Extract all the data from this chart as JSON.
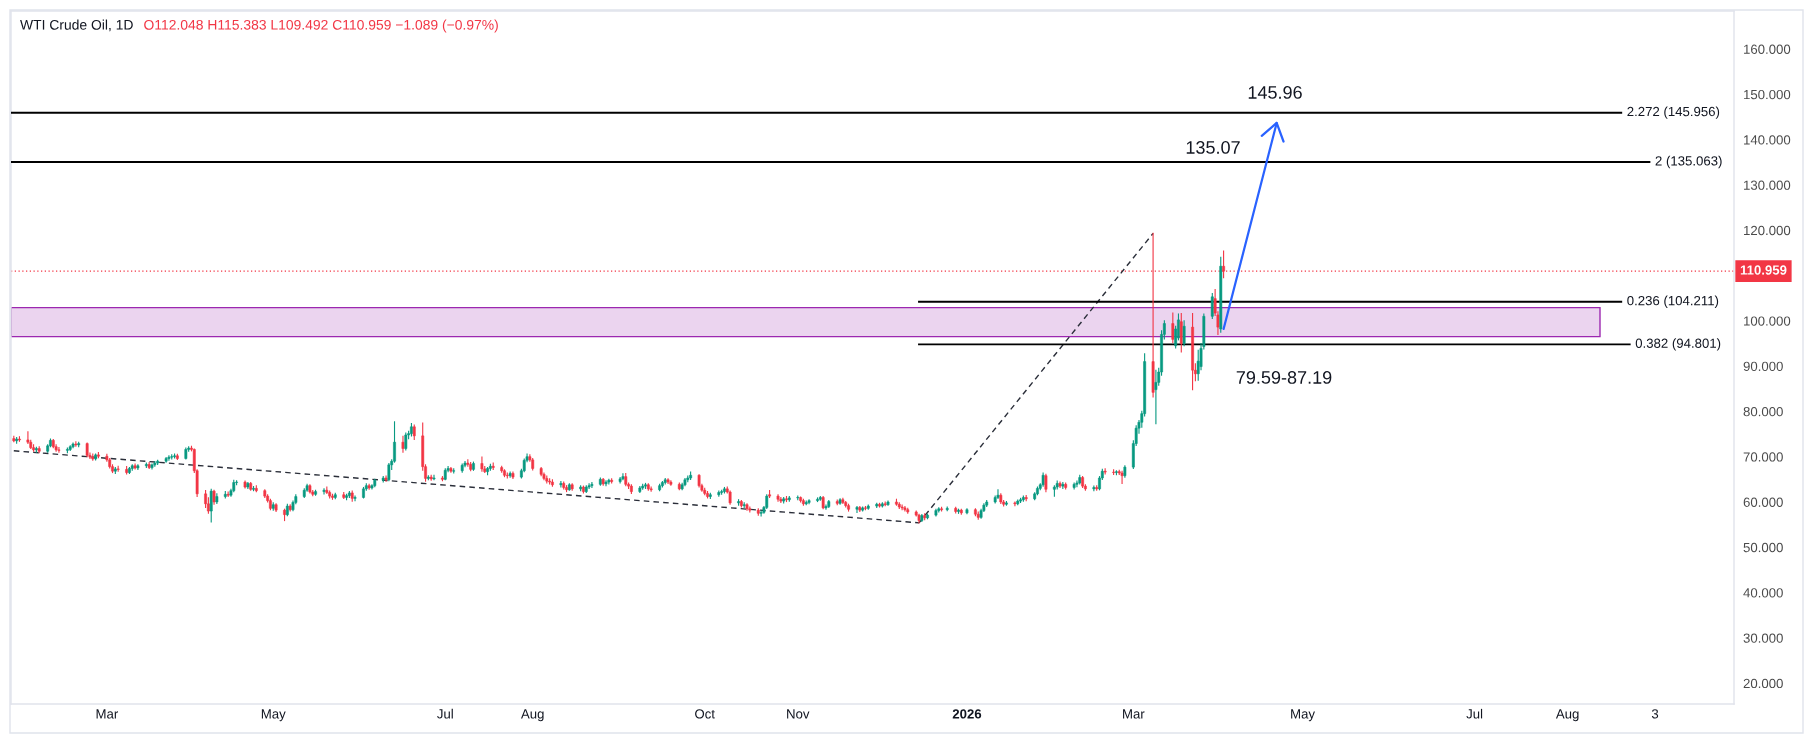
{
  "chart_data": {
    "type": "candlestick",
    "title": "WTI Crude Oil, 1D",
    "subtitle": "O112.048 H115.383 L109.492 C110.959 −1.089 (−0.97%)",
    "annotations": [
      "145.96",
      "135.07",
      "79.59-87.19"
    ],
    "x": [
      "2025-01-29",
      "2025-01-30",
      "2025-01-31",
      "2025-02-03",
      "2025-02-04",
      "2025-02-05",
      "2025-02-06",
      "2025-02-07",
      "2025-02-10",
      "2025-02-11",
      "2025-02-12",
      "2025-02-13",
      "2025-02-14",
      "2025-02-17",
      "2025-02-18",
      "2025-02-19",
      "2025-02-20",
      "2025-02-21",
      "2025-02-24",
      "2025-02-25",
      "2025-02-26",
      "2025-02-27",
      "2025-02-28",
      "2025-03-03",
      "2025-03-04",
      "2025-03-05",
      "2025-03-06",
      "2025-03-07",
      "2025-03-10",
      "2025-03-11",
      "2025-03-12",
      "2025-03-13",
      "2025-03-14",
      "2025-03-17",
      "2025-03-18",
      "2025-03-19",
      "2025-03-20",
      "2025-03-21",
      "2025-03-24",
      "2025-03-25",
      "2025-03-26",
      "2025-03-27",
      "2025-03-28",
      "2025-03-31",
      "2025-04-01",
      "2025-04-02",
      "2025-04-03",
      "2025-04-04",
      "2025-04-07",
      "2025-04-08",
      "2025-04-09",
      "2025-04-10",
      "2025-04-11",
      "2025-04-14",
      "2025-04-15",
      "2025-04-16",
      "2025-04-17",
      "2025-04-18",
      "2025-04-21",
      "2025-04-22",
      "2025-04-23",
      "2025-04-24",
      "2025-04-25",
      "2025-04-28",
      "2025-04-29",
      "2025-04-30",
      "2025-05-01",
      "2025-05-02",
      "2025-05-05",
      "2025-05-06",
      "2025-05-07",
      "2025-05-08",
      "2025-05-09",
      "2025-05-12",
      "2025-05-13",
      "2025-05-14",
      "2025-05-15",
      "2025-05-16",
      "2025-05-19",
      "2025-05-20",
      "2025-05-21",
      "2025-05-22",
      "2025-05-23",
      "2025-05-26",
      "2025-05-27",
      "2025-05-28",
      "2025-05-29",
      "2025-05-30",
      "2025-06-02",
      "2025-06-03",
      "2025-06-04",
      "2025-06-05",
      "2025-06-06",
      "2025-06-09",
      "2025-06-10",
      "2025-06-11",
      "2025-06-12",
      "2025-06-13",
      "2025-06-16",
      "2025-06-17",
      "2025-06-18",
      "2025-06-19",
      "2025-06-20",
      "2025-06-23",
      "2025-06-24",
      "2025-06-25",
      "2025-06-26",
      "2025-06-27",
      "2025-06-30",
      "2025-07-01",
      "2025-07-02",
      "2025-07-03",
      "2025-07-04",
      "2025-07-07",
      "2025-07-08",
      "2025-07-09",
      "2025-07-10",
      "2025-07-11",
      "2025-07-14",
      "2025-07-15",
      "2025-07-16",
      "2025-07-17",
      "2025-07-18",
      "2025-07-21",
      "2025-07-22",
      "2025-07-23",
      "2025-07-24",
      "2025-07-25",
      "2025-07-28",
      "2025-07-29",
      "2025-07-30",
      "2025-07-31",
      "2025-08-01",
      "2025-08-04",
      "2025-08-05",
      "2025-08-06",
      "2025-08-07",
      "2025-08-08",
      "2025-08-11",
      "2025-08-12",
      "2025-08-13",
      "2025-08-14",
      "2025-08-15",
      "2025-08-18",
      "2025-08-19",
      "2025-08-20",
      "2025-08-21",
      "2025-08-22",
      "2025-08-25",
      "2025-08-26",
      "2025-08-27",
      "2025-08-28",
      "2025-08-29",
      "2025-09-01",
      "2025-09-02",
      "2025-09-03",
      "2025-09-04",
      "2025-09-05",
      "2025-09-08",
      "2025-09-09",
      "2025-09-10",
      "2025-09-11",
      "2025-09-12",
      "2025-09-15",
      "2025-09-16",
      "2025-09-17",
      "2025-09-18",
      "2025-09-19",
      "2025-09-22",
      "2025-09-23",
      "2025-09-24",
      "2025-09-25",
      "2025-09-26",
      "2025-09-29",
      "2025-09-30",
      "2025-10-01",
      "2025-10-02",
      "2025-10-03",
      "2025-10-06",
      "2025-10-07",
      "2025-10-08",
      "2025-10-09",
      "2025-10-10",
      "2025-10-13",
      "2025-10-14",
      "2025-10-15",
      "2025-10-16",
      "2025-10-17",
      "2025-10-20",
      "2025-10-21",
      "2025-10-22",
      "2025-10-23",
      "2025-10-24",
      "2025-10-27",
      "2025-10-28",
      "2025-10-29",
      "2025-10-30",
      "2025-10-31",
      "2025-11-03",
      "2025-11-04",
      "2025-11-05",
      "2025-11-06",
      "2025-11-07",
      "2025-11-10",
      "2025-11-11",
      "2025-11-12",
      "2025-11-13",
      "2025-11-14",
      "2025-11-17",
      "2025-11-18",
      "2025-11-19",
      "2025-11-20",
      "2025-11-21",
      "2025-11-24",
      "2025-11-25",
      "2025-11-26",
      "2025-11-27",
      "2025-11-28",
      "2025-12-01",
      "2025-12-02",
      "2025-12-03",
      "2025-12-04",
      "2025-12-05",
      "2025-12-08",
      "2025-12-09",
      "2025-12-10",
      "2025-12-11",
      "2025-12-12",
      "2025-12-15",
      "2025-12-16",
      "2025-12-17",
      "2025-12-18",
      "2025-12-19",
      "2025-12-22",
      "2025-12-23",
      "2025-12-24",
      "2025-12-26",
      "2025-12-29",
      "2025-12-30",
      "2025-12-31",
      "2026-01-02",
      "2026-01-05",
      "2026-01-06",
      "2026-01-07",
      "2026-01-08",
      "2026-01-09",
      "2026-01-12",
      "2026-01-13",
      "2026-01-14",
      "2026-01-15",
      "2026-01-16",
      "2026-01-19",
      "2026-01-20",
      "2026-01-21",
      "2026-01-22",
      "2026-01-23",
      "2026-01-26",
      "2026-01-27",
      "2026-01-28",
      "2026-01-29",
      "2026-01-30",
      "2026-02-02",
      "2026-02-03",
      "2026-02-04",
      "2026-02-05",
      "2026-02-06",
      "2026-02-09",
      "2026-02-10",
      "2026-02-11",
      "2026-02-12",
      "2026-02-13",
      "2026-02-16",
      "2026-02-17",
      "2026-02-18",
      "2026-02-19",
      "2026-02-20",
      "2026-02-23",
      "2026-02-24",
      "2026-02-25",
      "2026-02-26",
      "2026-02-27",
      "2026-03-02",
      "2026-03-03",
      "2026-03-04",
      "2026-03-05",
      "2026-03-06",
      "2026-03-09",
      "2026-03-10",
      "2026-03-11",
      "2026-03-12",
      "2026-03-13",
      "2026-03-16",
      "2026-03-17",
      "2026-03-18",
      "2026-03-19",
      "2026-03-20",
      "2026-03-23",
      "2026-03-24",
      "2026-03-25",
      "2026-03-26",
      "2026-03-27",
      "2026-03-30",
      "2026-03-31",
      "2026-04-01",
      "2026-04-02",
      "2026-04-03"
    ],
    "ohlc": [
      [
        74.0,
        74.5,
        73.3,
        73.5
      ],
      [
        73.5,
        74.2,
        73.0,
        73.9
      ],
      [
        73.9,
        74.4,
        73.4,
        73.7
      ],
      [
        73.7,
        75.5,
        72.9,
        73.2
      ],
      [
        73.2,
        73.6,
        71.8,
        72.0
      ],
      [
        72.0,
        72.6,
        71.2,
        71.5
      ],
      [
        71.5,
        72.1,
        71.0,
        71.8
      ],
      [
        71.8,
        72.2,
        70.9,
        71.2
      ],
      [
        71.2,
        72.6,
        71.0,
        72.4
      ],
      [
        72.4,
        73.9,
        72.2,
        73.6
      ],
      [
        73.6,
        73.8,
        72.0,
        72.2
      ],
      [
        72.2,
        72.6,
        71.2,
        71.5
      ],
      [
        71.5,
        72.0,
        71.0,
        71.4
      ],
      [
        71.4,
        71.9,
        70.9,
        71.6
      ],
      [
        71.6,
        72.4,
        71.4,
        72.2
      ],
      [
        72.2,
        73.0,
        72.0,
        72.8
      ],
      [
        72.8,
        73.3,
        72.3,
        72.6
      ],
      [
        72.6,
        73.2,
        72.2,
        72.9
      ],
      [
        72.9,
        73.0,
        70.0,
        70.3
      ],
      [
        70.3,
        70.8,
        69.6,
        69.9
      ],
      [
        69.9,
        70.6,
        69.2,
        69.5
      ],
      [
        69.5,
        70.6,
        69.3,
        70.4
      ],
      [
        70.4,
        70.9,
        69.8,
        70.1
      ],
      [
        70.1,
        70.5,
        69.0,
        69.3
      ],
      [
        69.3,
        69.6,
        67.5,
        67.8
      ],
      [
        67.8,
        68.2,
        66.5,
        66.8
      ],
      [
        66.8,
        67.6,
        66.3,
        67.3
      ],
      [
        67.3,
        67.9,
        66.8,
        67.2
      ],
      [
        67.2,
        67.8,
        66.2,
        66.5
      ],
      [
        66.5,
        67.6,
        66.3,
        67.4
      ],
      [
        67.4,
        68.2,
        67.0,
        68.0
      ],
      [
        68.0,
        68.4,
        67.3,
        67.5
      ],
      [
        67.5,
        68.2,
        67.2,
        68.0
      ],
      [
        68.0,
        68.6,
        67.6,
        68.3
      ],
      [
        68.3,
        68.7,
        67.4,
        67.6
      ],
      [
        67.6,
        68.4,
        67.3,
        68.2
      ],
      [
        68.2,
        68.9,
        67.9,
        68.6
      ],
      [
        68.6,
        69.2,
        68.3,
        69.0
      ],
      [
        69.0,
        69.8,
        68.8,
        69.6
      ],
      [
        69.6,
        70.2,
        69.2,
        69.9
      ],
      [
        69.9,
        70.4,
        69.5,
        70.0
      ],
      [
        70.0,
        70.6,
        69.7,
        70.2
      ],
      [
        70.2,
        70.5,
        69.4,
        69.6
      ],
      [
        69.6,
        71.9,
        69.5,
        71.6
      ],
      [
        71.6,
        72.2,
        71.2,
        71.9
      ],
      [
        71.9,
        72.3,
        71.3,
        71.6
      ],
      [
        71.6,
        71.7,
        66.5,
        66.9
      ],
      [
        66.9,
        67.1,
        61.2,
        61.8
      ],
      [
        61.8,
        62.5,
        58.8,
        59.6
      ],
      [
        59.6,
        60.9,
        57.5,
        58.0
      ],
      [
        58.0,
        62.8,
        55.6,
        62.4
      ],
      [
        62.4,
        62.6,
        59.5,
        60.0
      ],
      [
        60.0,
        61.8,
        59.7,
        61.2
      ],
      [
        61.2,
        62.3,
        60.9,
        61.7
      ],
      [
        61.7,
        62.2,
        61.2,
        61.5
      ],
      [
        61.5,
        62.8,
        61.3,
        62.5
      ],
      [
        62.5,
        64.8,
        62.3,
        64.3
      ],
      [
        64.3,
        64.7,
        63.8,
        64.4
      ],
      [
        64.4,
        64.6,
        63.1,
        63.3
      ],
      [
        63.3,
        64.3,
        63.0,
        64.1
      ],
      [
        64.1,
        64.3,
        62.6,
        62.8
      ],
      [
        62.8,
        63.4,
        62.5,
        63.0
      ],
      [
        63.0,
        63.6,
        62.3,
        62.5
      ],
      [
        62.5,
        62.7,
        61.0,
        61.3
      ],
      [
        61.3,
        61.6,
        60.0,
        60.3
      ],
      [
        60.3,
        60.6,
        58.3,
        58.6
      ],
      [
        58.6,
        59.8,
        58.2,
        59.4
      ],
      [
        59.4,
        59.6,
        57.9,
        58.2
      ],
      [
        58.2,
        58.4,
        55.9,
        57.2
      ],
      [
        57.2,
        59.5,
        57.0,
        59.1
      ],
      [
        59.1,
        59.4,
        58.0,
        58.3
      ],
      [
        58.3,
        60.2,
        58.1,
        59.9
      ],
      [
        59.9,
        61.6,
        59.6,
        61.2
      ],
      [
        61.2,
        62.9,
        61.0,
        62.6
      ],
      [
        62.6,
        63.9,
        62.4,
        63.6
      ],
      [
        63.6,
        63.8,
        62.0,
        62.2
      ],
      [
        62.2,
        62.5,
        61.4,
        61.7
      ],
      [
        61.7,
        62.6,
        61.5,
        62.3
      ],
      [
        62.3,
        62.9,
        61.8,
        62.6
      ],
      [
        62.6,
        63.3,
        61.9,
        62.1
      ],
      [
        62.1,
        62.4,
        60.9,
        61.3
      ],
      [
        61.3,
        61.7,
        60.6,
        61.0
      ],
      [
        61.0,
        61.9,
        60.7,
        61.6
      ],
      [
        61.6,
        62.1,
        60.8,
        61.0
      ],
      [
        61.0,
        61.7,
        60.5,
        61.4
      ],
      [
        61.4,
        62.3,
        61.0,
        62.0
      ],
      [
        62.0,
        62.4,
        60.2,
        60.8
      ],
      [
        60.8,
        61.3,
        60.3,
        61.0
      ],
      [
        61.0,
        63.2,
        60.9,
        62.9
      ],
      [
        62.9,
        64.0,
        62.6,
        63.6
      ],
      [
        63.6,
        63.9,
        62.8,
        63.1
      ],
      [
        63.1,
        63.8,
        62.9,
        63.6
      ],
      [
        63.6,
        65.0,
        63.4,
        64.8
      ],
      [
        64.8,
        65.6,
        64.4,
        65.3
      ],
      [
        65.3,
        65.7,
        64.6,
        64.9
      ],
      [
        64.9,
        68.5,
        64.7,
        68.2
      ],
      [
        68.2,
        69.3,
        67.2,
        69.0
      ],
      [
        69.0,
        77.7,
        68.8,
        73.2
      ],
      [
        73.2,
        74.5,
        71.0,
        71.8
      ],
      [
        71.8,
        75.2,
        71.5,
        74.8
      ],
      [
        74.8,
        75.6,
        74.0,
        75.1
      ],
      [
        75.1,
        77.3,
        74.6,
        76.6
      ],
      [
        76.6,
        77.0,
        73.8,
        74.6
      ],
      [
        74.6,
        77.4,
        67.0,
        67.8
      ],
      [
        67.8,
        68.2,
        64.6,
        65.2
      ],
      [
        65.2,
        65.8,
        64.9,
        65.5
      ],
      [
        65.5,
        65.9,
        64.8,
        65.1
      ],
      [
        65.1,
        65.9,
        64.9,
        65.3
      ],
      [
        65.3,
        65.6,
        64.7,
        65.0
      ],
      [
        65.0,
        67.3,
        64.9,
        67.0
      ],
      [
        67.0,
        67.8,
        66.7,
        67.4
      ],
      [
        67.4,
        67.6,
        66.6,
        66.8
      ],
      [
        66.8,
        67.3,
        66.4,
        66.9
      ],
      [
        66.9,
        68.4,
        66.6,
        68.1
      ],
      [
        68.1,
        68.9,
        67.8,
        68.6
      ],
      [
        68.6,
        69.3,
        67.9,
        68.3
      ],
      [
        68.3,
        68.7,
        66.9,
        67.2
      ],
      [
        67.2,
        68.8,
        67.0,
        68.5
      ],
      [
        68.5,
        69.9,
        66.8,
        67.3
      ],
      [
        67.3,
        67.8,
        66.5,
        66.7
      ],
      [
        66.7,
        67.6,
        66.0,
        67.4
      ],
      [
        67.4,
        68.3,
        67.0,
        67.9
      ],
      [
        67.9,
        68.6,
        67.2,
        67.6
      ],
      [
        67.6,
        67.9,
        66.6,
        66.9
      ],
      [
        66.9,
        67.1,
        65.6,
        65.9
      ],
      [
        65.9,
        66.4,
        65.3,
        65.8
      ],
      [
        65.8,
        66.6,
        65.5,
        66.3
      ],
      [
        66.3,
        66.6,
        65.2,
        65.5
      ],
      [
        65.5,
        67.2,
        65.3,
        66.9
      ],
      [
        66.9,
        69.5,
        66.7,
        69.2
      ],
      [
        69.2,
        70.6,
        68.9,
        70.0
      ],
      [
        70.0,
        70.4,
        69.0,
        69.3
      ],
      [
        69.3,
        69.6,
        67.1,
        67.4
      ],
      [
        67.4,
        67.6,
        65.8,
        66.1
      ],
      [
        66.1,
        66.4,
        64.9,
        65.2
      ],
      [
        65.2,
        65.7,
        64.2,
        64.6
      ],
      [
        64.6,
        65.1,
        64.0,
        64.4
      ],
      [
        64.4,
        64.9,
        63.5,
        63.8
      ],
      [
        63.8,
        64.5,
        63.3,
        64.1
      ],
      [
        64.1,
        64.4,
        62.9,
        63.2
      ],
      [
        63.2,
        63.6,
        62.3,
        62.7
      ],
      [
        62.7,
        64.0,
        62.6,
        63.8
      ],
      [
        63.8,
        64.0,
        62.6,
        62.9
      ],
      [
        62.9,
        63.6,
        62.5,
        63.3
      ],
      [
        63.3,
        63.5,
        62.0,
        62.3
      ],
      [
        62.3,
        63.6,
        62.1,
        63.3
      ],
      [
        63.3,
        64.0,
        63.0,
        63.6
      ],
      [
        63.6,
        64.3,
        63.2,
        63.9
      ],
      [
        63.9,
        65.3,
        63.7,
        65.0
      ],
      [
        65.0,
        65.2,
        63.7,
        64.0
      ],
      [
        64.0,
        64.7,
        63.6,
        64.4
      ],
      [
        64.4,
        65.0,
        64.0,
        64.8
      ],
      [
        64.8,
        65.1,
        64.2,
        64.5
      ],
      [
        64.5,
        65.4,
        64.2,
        65.1
      ],
      [
        65.1,
        66.2,
        64.9,
        65.6
      ],
      [
        65.6,
        66.3,
        63.6,
        63.9
      ],
      [
        63.9,
        64.2,
        63.0,
        63.5
      ],
      [
        63.5,
        63.8,
        61.9,
        62.3
      ],
      [
        62.3,
        63.4,
        62.1,
        63.1
      ],
      [
        63.1,
        63.9,
        62.8,
        63.5
      ],
      [
        63.5,
        64.1,
        63.0,
        63.8
      ],
      [
        63.8,
        64.0,
        62.6,
        62.9
      ],
      [
        62.9,
        63.3,
        62.4,
        62.7
      ],
      [
        62.7,
        63.9,
        62.5,
        63.6
      ],
      [
        63.6,
        64.5,
        63.3,
        64.3
      ],
      [
        64.3,
        65.2,
        64.0,
        64.9
      ],
      [
        64.9,
        65.1,
        64.1,
        64.4
      ],
      [
        64.4,
        64.7,
        63.7,
        63.9
      ],
      [
        63.9,
        64.2,
        62.7,
        62.9
      ],
      [
        62.9,
        64.1,
        62.7,
        63.8
      ],
      [
        63.8,
        65.2,
        63.6,
        64.9
      ],
      [
        64.9,
        65.7,
        64.5,
        65.3
      ],
      [
        65.3,
        66.6,
        65.0,
        65.9
      ],
      [
        65.9,
        66.0,
        63.3,
        63.6
      ],
      [
        63.6,
        63.9,
        62.4,
        62.6
      ],
      [
        62.6,
        63.0,
        61.6,
        61.9
      ],
      [
        61.9,
        62.3,
        60.9,
        61.2
      ],
      [
        61.2,
        61.9,
        60.8,
        61.6
      ],
      [
        61.6,
        62.4,
        61.3,
        62.1
      ],
      [
        62.1,
        62.6,
        61.7,
        62.3
      ],
      [
        62.3,
        63.2,
        62.0,
        62.9
      ],
      [
        62.9,
        63.3,
        62.0,
        62.2
      ],
      [
        62.2,
        62.4,
        59.5,
        59.8
      ],
      [
        59.8,
        60.5,
        59.3,
        60.1
      ],
      [
        60.1,
        60.3,
        58.9,
        59.2
      ],
      [
        59.2,
        59.8,
        58.8,
        59.4
      ],
      [
        59.4,
        59.6,
        58.2,
        58.5
      ],
      [
        58.5,
        58.9,
        57.8,
        58.2
      ],
      [
        58.2,
        58.5,
        57.1,
        57.5
      ],
      [
        57.5,
        58.0,
        56.9,
        57.7
      ],
      [
        57.7,
        59.0,
        57.5,
        58.8
      ],
      [
        58.8,
        61.6,
        58.6,
        61.3
      ],
      [
        61.6,
        62.5,
        61.0,
        61.3
      ],
      [
        61.3,
        61.6,
        60.2,
        60.6
      ],
      [
        60.6,
        61.0,
        59.9,
        60.2
      ],
      [
        60.2,
        61.0,
        59.8,
        60.7
      ],
      [
        60.7,
        61.2,
        60.1,
        60.5
      ],
      [
        60.5,
        61.2,
        60.2,
        60.9
      ],
      [
        60.9,
        61.3,
        60.5,
        61.0
      ],
      [
        61.0,
        61.1,
        60.0,
        60.3
      ],
      [
        60.3,
        60.6,
        59.3,
        59.6
      ],
      [
        59.6,
        60.2,
        59.4,
        59.9
      ],
      [
        59.9,
        60.5,
        59.6,
        60.3
      ],
      [
        60.3,
        60.9,
        60.1,
        60.6
      ],
      [
        60.6,
        61.2,
        60.4,
        61.0
      ],
      [
        61.0,
        61.2,
        58.5,
        58.7
      ],
      [
        58.7,
        59.3,
        58.4,
        59.0
      ],
      [
        59.0,
        60.3,
        58.8,
        60.1
      ],
      [
        60.1,
        60.4,
        59.4,
        59.7
      ],
      [
        59.7,
        60.7,
        59.5,
        60.5
      ],
      [
        60.5,
        60.8,
        59.7,
        59.9
      ],
      [
        59.9,
        60.1,
        58.9,
        59.2
      ],
      [
        59.2,
        59.5,
        58.0,
        58.4
      ],
      [
        58.4,
        59.0,
        57.7,
        58.8
      ],
      [
        58.8,
        59.0,
        57.9,
        58.2
      ],
      [
        58.2,
        58.9,
        58.0,
        58.7
      ],
      [
        58.7,
        59.0,
        58.3,
        58.6
      ],
      [
        58.6,
        59.3,
        58.4,
        59.1
      ],
      [
        59.1,
        59.7,
        58.8,
        59.5
      ],
      [
        59.5,
        59.7,
        58.9,
        59.1
      ],
      [
        59.1,
        59.8,
        58.9,
        59.6
      ],
      [
        59.6,
        60.0,
        59.2,
        59.4
      ],
      [
        59.4,
        60.2,
        59.3,
        60.0
      ],
      [
        60.0,
        60.6,
        59.3,
        59.5
      ],
      [
        59.5,
        59.8,
        58.6,
        58.9
      ],
      [
        58.9,
        59.3,
        58.3,
        58.7
      ],
      [
        58.7,
        59.0,
        58.0,
        58.3
      ],
      [
        58.3,
        58.6,
        57.5,
        57.8
      ],
      [
        57.8,
        58.0,
        56.9,
        57.1
      ],
      [
        57.1,
        57.3,
        55.4,
        55.9
      ],
      [
        55.9,
        57.2,
        55.7,
        57.0
      ],
      [
        57.0,
        57.4,
        56.1,
        56.5
      ],
      [
        56.5,
        57.3,
        56.3,
        57.1
      ],
      [
        57.1,
        58.4,
        56.9,
        58.1
      ],
      [
        58.1,
        58.7,
        57.8,
        58.5
      ],
      [
        58.5,
        58.8,
        58.0,
        58.3
      ],
      [
        58.3,
        58.9,
        58.1,
        58.6
      ],
      [
        58.6,
        58.8,
        57.6,
        57.9
      ],
      [
        57.9,
        58.4,
        57.5,
        58.2
      ],
      [
        58.2,
        58.4,
        57.3,
        57.6
      ],
      [
        57.6,
        58.5,
        57.4,
        58.3
      ],
      [
        58.3,
        58.5,
        57.0,
        57.3
      ],
      [
        57.3,
        57.8,
        56.2,
        56.6
      ],
      [
        56.6,
        58.4,
        56.4,
        58.1
      ],
      [
        58.1,
        59.6,
        57.9,
        59.3
      ],
      [
        59.3,
        60.3,
        59.0,
        60.0
      ],
      [
        60.0,
        61.3,
        59.8,
        61.0
      ],
      [
        61.0,
        62.7,
        60.8,
        61.5
      ],
      [
        61.5,
        61.8,
        59.7,
        60.0
      ],
      [
        60.0,
        60.3,
        59.1,
        59.5
      ],
      [
        59.5,
        60.1,
        59.3,
        59.8
      ],
      [
        59.8,
        60.0,
        59.2,
        59.6
      ],
      [
        59.6,
        60.4,
        59.4,
        60.2
      ],
      [
        60.2,
        60.8,
        59.9,
        60.5
      ],
      [
        60.5,
        61.3,
        60.2,
        61.0
      ],
      [
        61.0,
        61.4,
        60.3,
        60.7
      ],
      [
        60.7,
        62.0,
        60.5,
        61.8
      ],
      [
        61.8,
        63.3,
        61.6,
        63.0
      ],
      [
        63.0,
        64.0,
        62.7,
        63.8
      ],
      [
        63.8,
        66.4,
        63.5,
        65.9
      ],
      [
        65.8,
        66.1,
        62.3,
        62.8
      ],
      [
        62.8,
        63.6,
        61.3,
        63.3
      ],
      [
        63.3,
        64.6,
        62.9,
        64.1
      ],
      [
        64.1,
        64.4,
        63.2,
        63.5
      ],
      [
        63.5,
        64.3,
        63.0,
        63.9
      ],
      [
        63.9,
        64.2,
        62.9,
        63.2
      ],
      [
        63.2,
        64.2,
        62.9,
        63.9
      ],
      [
        63.9,
        64.6,
        63.4,
        64.2
      ],
      [
        64.2,
        65.9,
        64.0,
        65.4
      ],
      [
        65.4,
        65.6,
        63.2,
        63.5
      ],
      [
        63.5,
        63.8,
        62.6,
        62.9
      ],
      [
        62.9,
        63.5,
        62.5,
        63.2
      ],
      [
        63.2,
        63.6,
        62.6,
        62.9
      ],
      [
        62.9,
        65.6,
        62.7,
        65.3
      ],
      [
        65.3,
        67.2,
        65.0,
        66.8
      ],
      [
        66.8,
        67.3,
        66.2,
        66.6
      ],
      [
        66.6,
        67.1,
        66.1,
        66.5
      ],
      [
        66.5,
        66.9,
        66.0,
        66.7
      ],
      [
        66.7,
        67.0,
        66.1,
        66.4
      ],
      [
        66.4,
        66.8,
        64.1,
        65.8
      ],
      [
        65.8,
        68.0,
        65.5,
        67.7
      ],
      [
        67.7,
        73.5,
        67.4,
        72.9
      ],
      [
        72.9,
        76.8,
        72.5,
        76.3
      ],
      [
        76.3,
        78.0,
        75.2,
        77.6
      ],
      [
        77.6,
        80.0,
        76.5,
        79.5
      ],
      [
        79.5,
        92.7,
        79.0,
        91.0
      ],
      [
        91.0,
        119.3,
        83.2,
        84.2
      ],
      [
        84.8,
        89.1,
        77.3,
        86.4
      ],
      [
        86.4,
        89.5,
        85.8,
        88.7
      ],
      [
        88.7,
        97.8,
        88.0,
        97.0
      ],
      [
        97.0,
        100.0,
        96.0,
        99.4
      ],
      [
        99.4,
        101.7,
        95.2,
        95.9
      ],
      [
        94.5,
        98.8,
        94.0,
        98.2
      ],
      [
        96.2,
        101.5,
        95.8,
        100.2
      ],
      [
        99.8,
        101.6,
        93.1,
        95.0
      ],
      [
        95.0,
        100.0,
        94.5,
        98.8
      ],
      [
        98.6,
        101.6,
        84.8,
        89.1
      ],
      [
        89.1,
        90.5,
        86.8,
        88.3
      ],
      [
        88.3,
        93.5,
        86.9,
        91.1
      ],
      [
        89.9,
        95.0,
        89.2,
        93.9
      ],
      [
        94.3,
        101.5,
        93.8,
        101.0
      ],
      [
        101.0,
        106.0,
        100.5,
        105.3
      ],
      [
        104.9,
        106.9,
        101.2,
        101.7
      ],
      [
        101.3,
        102.0,
        97.0,
        98.6
      ],
      [
        98.2,
        114.0,
        97.5,
        112.048
      ],
      [
        112.048,
        115.383,
        109.492,
        110.959
      ]
    ],
    "colors": [
      "#f23645",
      "#089981",
      "#f23645",
      "#f23645",
      "#f23645",
      "#f23645",
      "#089981",
      "#f23645",
      "#089981",
      "#089981",
      "#f23645",
      "#f23645",
      "#f23645",
      "#089981",
      "#089981",
      "#089981",
      "#f23645",
      "#089981",
      "#f23645",
      "#f23645",
      "#f23645",
      "#089981",
      "#f23645",
      "#f23645",
      "#f23645",
      "#f23645",
      "#089981",
      "#f23645",
      "#f23645",
      "#089981",
      "#089981",
      "#f23645",
      "#089981",
      "#089981",
      "#f23645",
      "#089981",
      "#089981",
      "#089981",
      "#089981",
      "#089981",
      "#089981",
      "#089981",
      "#f23645",
      "#089981",
      "#089981",
      "#f23645",
      "#f23645",
      "#f23645",
      "#f23645",
      "#f23645",
      "#089981",
      "#f23645",
      "#089981",
      "#089981",
      "#f23645",
      "#089981",
      "#089981",
      "#089981",
      "#f23645",
      "#089981",
      "#f23645",
      "#089981",
      "#f23645",
      "#f23645",
      "#f23645",
      "#f23645",
      "#089981",
      "#f23645",
      "#f23645",
      "#089981",
      "#f23645",
      "#089981",
      "#089981",
      "#089981",
      "#089981",
      "#f23645",
      "#f23645",
      "#089981",
      "#089981",
      "#f23645",
      "#f23645",
      "#f23645",
      "#089981",
      "#f23645",
      "#089981",
      "#089981",
      "#f23645",
      "#089981",
      "#089981",
      "#089981",
      "#f23645",
      "#089981",
      "#089981",
      "#089981",
      "#f23645",
      "#089981",
      "#089981",
      "#089981",
      "#f23645",
      "#089981",
      "#089981",
      "#089981",
      "#f23645",
      "#f23645",
      "#f23645",
      "#089981",
      "#f23645",
      "#089981",
      "#f23645",
      "#089981",
      "#089981",
      "#f23645",
      "#089981",
      "#089981",
      "#089981",
      "#f23645",
      "#f23645",
      "#089981",
      "#f23645",
      "#f23645",
      "#089981",
      "#089981",
      "#f23645",
      "#f23645",
      "#f23645",
      "#f23645",
      "#089981",
      "#f23645",
      "#089981",
      "#089981",
      "#089981",
      "#f23645",
      "#f23645",
      "#f23645",
      "#f23645",
      "#f23645",
      "#f23645",
      "#f23645",
      "#089981",
      "#f23645",
      "#f23645",
      "#089981",
      "#f23645",
      "#089981",
      "#f23645",
      "#089981",
      "#089981",
      "#089981",
      "#089981",
      "#f23645",
      "#089981",
      "#089981",
      "#f23645",
      "#089981",
      "#089981",
      "#f23645",
      "#f23645",
      "#f23645",
      "#089981",
      "#089981",
      "#089981",
      "#f23645",
      "#f23645",
      "#089981",
      "#089981",
      "#089981",
      "#f23645",
      "#f23645",
      "#f23645",
      "#089981",
      "#089981",
      "#089981",
      "#089981",
      "#f23645",
      "#f23645",
      "#f23645",
      "#f23645",
      "#089981",
      "#089981",
      "#089981",
      "#089981",
      "#f23645",
      "#f23645",
      "#089981",
      "#f23645",
      "#089981",
      "#f23645",
      "#f23645",
      "#f23645",
      "#089981",
      "#089981",
      "#089981",
      "#f23645",
      "#f23645",
      "#f23645",
      "#089981",
      "#f23645",
      "#089981",
      "#089981",
      "#f23645",
      "#f23645",
      "#089981",
      "#089981",
      "#089981",
      "#089981",
      "#f23645",
      "#089981",
      "#089981",
      "#f23645",
      "#089981",
      "#f23645",
      "#f23645",
      "#f23645",
      "#089981",
      "#f23645",
      "#089981",
      "#f23645",
      "#089981",
      "#089981",
      "#f23645",
      "#089981",
      "#f23645",
      "#089981",
      "#f23645",
      "#f23645",
      "#f23645",
      "#f23645",
      "#f23645",
      "#f23645",
      "#f23645",
      "#089981",
      "#f23645",
      "#089981",
      "#089981",
      "#089981",
      "#f23645",
      "#089981",
      "#f23645",
      "#089981",
      "#f23645",
      "#089981",
      "#f23645",
      "#f23645",
      "#089981",
      "#089981",
      "#089981",
      "#089981",
      "#089981",
      "#f23645",
      "#f23645",
      "#089981",
      "#f23645",
      "#089981",
      "#089981",
      "#089981",
      "#f23645",
      "#089981",
      "#089981",
      "#089981",
      "#089981",
      "#f23645",
      "#089981",
      "#089981",
      "#f23645",
      "#089981",
      "#f23645",
      "#089981",
      "#089981",
      "#089981",
      "#f23645",
      "#f23645",
      "#089981",
      "#f23645",
      "#089981",
      "#089981",
      "#f23645",
      "#f23645",
      "#089981",
      "#f23645",
      "#f23645",
      "#089981",
      "#089981",
      "#089981",
      "#089981",
      "#089981",
      "#089981",
      "#f23645",
      "#089981",
      "#089981",
      "#089981",
      "#089981",
      "#f23645",
      "#089981",
      "#089981",
      "#f23645",
      "#089981",
      "#f23645",
      "#f23645",
      "#089981",
      "#089981",
      "#089981",
      "#089981",
      "#f23645",
      "#f23645",
      "#089981",
      "#f23645"
    ],
    "series": [
      {
        "type": "line",
        "x": [
          "2025-01-29",
          "2025-12-16"
        ],
        "values": [
          71.3,
          55.4
        ],
        "color": "#2a2e39",
        "line_style": "dashed"
      },
      {
        "type": "line",
        "x": [
          "2025-12-16",
          "2026-03-09"
        ],
        "values": [
          55.4,
          119.3
        ],
        "color": "#2a2e39",
        "line_style": "dashed"
      },
      {
        "type": "line",
        "name": "2.272 (145.956)",
        "x": [
          "2025-01-28",
          "2026-08-22"
        ],
        "values": [
          145.956,
          145.956
        ],
        "color": "#000000"
      },
      {
        "type": "line",
        "name": "2 (135.063)",
        "x": [
          "2025-01-28",
          "2026-09-01"
        ],
        "values": [
          135.063,
          135.063
        ],
        "color": "#000000"
      },
      {
        "type": "line",
        "name": "0.236 (104.211)",
        "x": [
          "2025-12-16",
          "2026-08-22"
        ],
        "values": [
          104.211,
          104.211
        ],
        "color": "#000000"
      },
      {
        "type": "line",
        "name": "0.382 (94.801)",
        "x": [
          "2025-12-16",
          "2026-08-25"
        ],
        "values": [
          94.801,
          94.801
        ],
        "color": "#000000"
      },
      {
        "type": "line",
        "x": [
          "2026-04-03",
          "2026-04-22"
        ],
        "values": [
          98.2,
          144.1
        ],
        "color": "#2962ff"
      }
    ],
    "bands": [
      {
        "axis": "y",
        "from": 96.5,
        "to": 102.9,
        "color": "#9c27b0"
      }
    ],
    "ref_lines": [
      {
        "axis": "y",
        "value": 110.959,
        "label": "110.959",
        "color": "#f23645",
        "line_style": "dotted"
      }
    ],
    "xlim": [
      "2025-01-28",
      "2026-10-01"
    ],
    "xticks": [
      {
        "value": "2025-03-03",
        "label": "Mar"
      },
      {
        "value": "2025-05-01",
        "label": "May"
      },
      {
        "value": "2025-07-01",
        "label": "Jul"
      },
      {
        "value": "2025-08-01",
        "label": "Aug"
      },
      {
        "value": "2025-10-01",
        "label": "Oct"
      },
      {
        "value": "2025-11-03",
        "label": "Nov"
      },
      {
        "value": "2026-01-02",
        "label": "2026"
      },
      {
        "value": "2026-03-02",
        "label": "Mar"
      },
      {
        "value": "2026-05-01",
        "label": "May"
      },
      {
        "value": "2026-07-01",
        "label": "Jul"
      },
      {
        "value": "2026-08-03",
        "label": "Aug"
      },
      {
        "value": "2026-09-03",
        "label": "3"
      }
    ],
    "ylim": [
      15.4,
      168.4
    ],
    "yticks": [
      {
        "value": 20,
        "label": "20.000"
      },
      {
        "value": 30,
        "label": "30.000"
      },
      {
        "value": 40,
        "label": "40.000"
      },
      {
        "value": 50,
        "label": "50.000"
      },
      {
        "value": 60,
        "label": "60.000"
      },
      {
        "value": 70,
        "label": "70.000"
      },
      {
        "value": 80,
        "label": "80.000"
      },
      {
        "value": 90,
        "label": "90.000"
      },
      {
        "value": 100,
        "label": "100.000"
      },
      {
        "value": 120,
        "label": "120.000"
      },
      {
        "value": 130,
        "label": "130.000"
      },
      {
        "value": 140,
        "label": "140.000"
      },
      {
        "value": 150,
        "label": "150.000"
      },
      {
        "value": 160,
        "label": "160.000"
      }
    ]
  }
}
